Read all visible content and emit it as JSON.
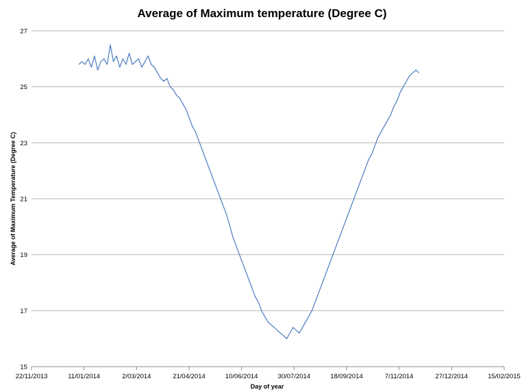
{
  "chart_data": {
    "type": "line",
    "title": "Average of Maximum temperature (Degree C)",
    "xlabel": "Day of year",
    "ylabel": "Average of Maximum Temperature (Degree C)",
    "ylim": [
      15,
      27
    ],
    "yticks": [
      15,
      17,
      19,
      21,
      23,
      25,
      27
    ],
    "xlim_days_since_2013_11_22": [
      0,
      450
    ],
    "xticks": [
      {
        "day": 0,
        "label": "22/11/2013"
      },
      {
        "day": 50,
        "label": "11/01/2014"
      },
      {
        "day": 100,
        "label": "2/03/2014"
      },
      {
        "day": 150,
        "label": "21/04/2014"
      },
      {
        "day": 200,
        "label": "10/06/2014"
      },
      {
        "day": 250,
        "label": "30/07/2014"
      },
      {
        "day": 300,
        "label": "18/09/2014"
      },
      {
        "day": 350,
        "label": "7/11/2014"
      },
      {
        "day": 400,
        "label": "27/12/2014"
      },
      {
        "day": 450,
        "label": "15/02/2015"
      }
    ],
    "grid": "horizontal",
    "color": "#4a78c0",
    "series": [
      {
        "name": "Average of Maximum temperature (Degree C)",
        "x_day_start": 45,
        "x_day_step": 3,
        "values": [
          25.8,
          25.9,
          25.8,
          26.0,
          25.7,
          26.1,
          25.6,
          25.9,
          26.0,
          25.8,
          26.5,
          25.9,
          26.1,
          25.7,
          26.0,
          25.8,
          26.2,
          25.8,
          25.9,
          26.0,
          25.7,
          25.9,
          26.1,
          25.8,
          25.7,
          25.5,
          25.3,
          25.2,
          25.3,
          25.0,
          24.9,
          24.7,
          24.6,
          24.4,
          24.2,
          23.9,
          23.6,
          23.4,
          23.1,
          22.8,
          22.5,
          22.2,
          21.9,
          21.6,
          21.3,
          21.0,
          20.7,
          20.4,
          20.0,
          19.6,
          19.3,
          19.0,
          18.7,
          18.4,
          18.1,
          17.8,
          17.5,
          17.3,
          17.0,
          16.8,
          16.6,
          16.5,
          16.4,
          16.3,
          16.2,
          16.1,
          16.0,
          16.2,
          16.4,
          16.3,
          16.2,
          16.4,
          16.6,
          16.8,
          17.0,
          17.3,
          17.6,
          17.9,
          18.2,
          18.5,
          18.8,
          19.1,
          19.4,
          19.7,
          20.0,
          20.3,
          20.6,
          20.9,
          21.2,
          21.5,
          21.8,
          22.1,
          22.4,
          22.6,
          22.9,
          23.2,
          23.4,
          23.6,
          23.8,
          24.0,
          24.3,
          24.5,
          24.8,
          25.0,
          25.2,
          25.4,
          25.5,
          25.6,
          25.5
        ]
      }
    ]
  }
}
